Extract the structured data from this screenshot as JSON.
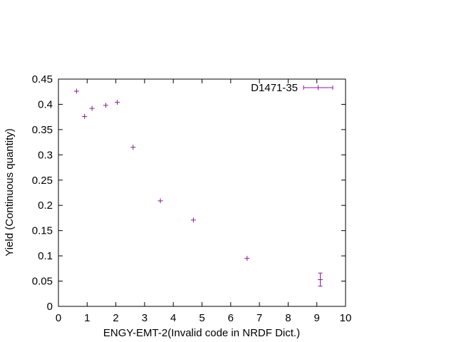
{
  "chart_data": {
    "type": "scatter",
    "xlabel": "ENGY-EMT-2(Invalid code in NRDF Dict.)",
    "ylabel": "Yield (Continuous quantity)",
    "xlim": [
      0,
      10
    ],
    "ylim": [
      0,
      0.45
    ],
    "x_ticks": [
      "0",
      "1",
      "2",
      "3",
      "4",
      "5",
      "6",
      "7",
      "8",
      "9",
      "10"
    ],
    "y_ticks": [
      "0",
      "0.05",
      "0.1",
      "0.15",
      "0.2",
      "0.25",
      "0.3",
      "0.35",
      "0.4",
      "0.45"
    ],
    "grid": false,
    "legend_position": "top-right",
    "color": "#8B1A9B",
    "series": [
      {
        "name": "D1471-35",
        "x": [
          0.63,
          0.91,
          1.17,
          1.65,
          2.05,
          2.6,
          3.55,
          4.7,
          6.57,
          9.12
        ],
        "y": [
          0.426,
          0.376,
          0.392,
          0.398,
          0.404,
          0.315,
          0.209,
          0.171,
          0.095,
          0.053
        ],
        "yerr": [
          0,
          0,
          0,
          0,
          0,
          0,
          0,
          0,
          0,
          0.013
        ]
      }
    ]
  }
}
